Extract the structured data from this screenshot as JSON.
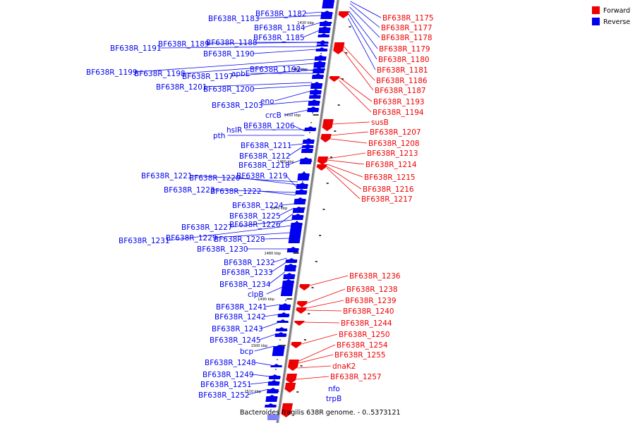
{
  "colors": {
    "forward": "#ee0000",
    "reverse": "#0000ee",
    "backbone": "#808080"
  },
  "legend": {
    "forward_label": "Forward",
    "reverse_label": "Reverse"
  },
  "caption": "Bacteroides fragilis 638R genome. - 0..5373121",
  "ruler_ticks": [
    "1430 kbp",
    "1440 kbp",
    "1450 kbp",
    "1460 kbp",
    "1470 kbp",
    "1480 kbp",
    "1490 kbp",
    "1500 kbp",
    "1510 kbp"
  ],
  "reverse_labels": [
    "BF638R_1183",
    "BF638R_1182",
    "BF638R_1184",
    "BF638R_1185",
    "BF638R_1191",
    "BF638R_1189",
    "BF638R_1188",
    "BF638R_1190",
    "BF638R_1199",
    "BF638R_1198",
    "BF638R_1197",
    "apbE",
    "BF638R_1192",
    "BF638R_1201",
    "BF638R_1200",
    "eno",
    "BF638R_1203",
    "crcB",
    "hslR",
    "BF638R_1206",
    "pth",
    "BF638R_1211",
    "BF638R_1212",
    "BF638R_1218",
    "BF638R_1221",
    "BF638R_1220",
    "BF638R_1219",
    "BF638R_1223",
    "BF638R_1222",
    "BF638R_1224",
    "BF638R_1225",
    "BF638R_1226",
    "BF638R_1227",
    "BF638R_1231",
    "BF638R_1229",
    "BF638R_1228",
    "BF638R_1230",
    "BF638R_1232",
    "BF638R_1233",
    "BF638R_1234",
    "clpB",
    "BF638R_1241",
    "BF638R_1242",
    "BF638R_1243",
    "BF638R_1245",
    "bcp",
    "BF638R_1248",
    "BF638R_1249",
    "BF638R_1251",
    "BF638R_1252",
    "nfo",
    "trpB"
  ],
  "forward_labels": [
    "BF638R_1175",
    "BF638R_1177",
    "BF638R_1178",
    "BF638R_1179",
    "BF638R_1180",
    "BF638R_1181",
    "BF638R_1186",
    "BF638R_1187",
    "BF638R_1193",
    "BF638R_1194",
    "susB",
    "BF638R_1207",
    "BF638R_1208",
    "BF638R_1213",
    "BF638R_1214",
    "BF638R_1215",
    "BF638R_1216",
    "BF638R_1217",
    "BF638R_1236",
    "BF638R_1238",
    "BF638R_1239",
    "BF638R_1240",
    "BF638R_1244",
    "BF638R_1250",
    "BF638R_1254",
    "BF638R_1255",
    "dnaK2",
    "BF638R_1257"
  ]
}
